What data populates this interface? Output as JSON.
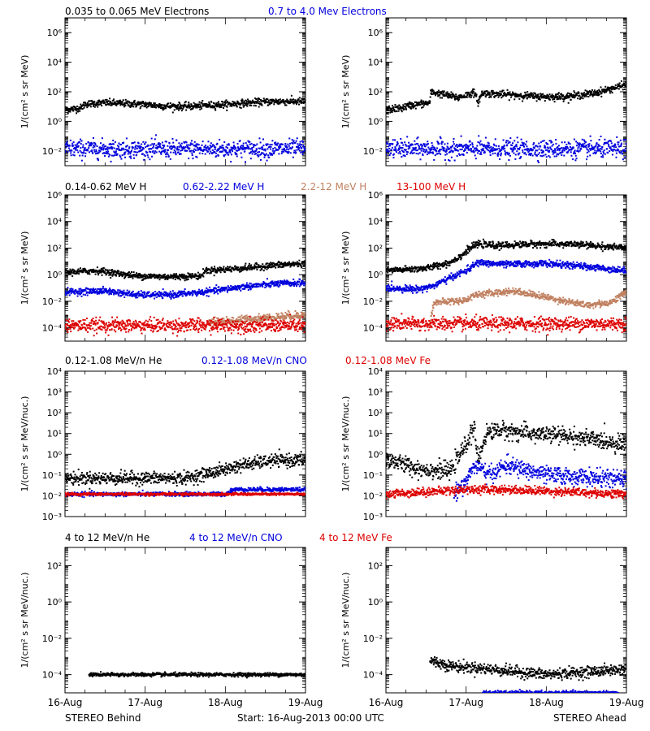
{
  "footer": {
    "left": "STEREO Behind",
    "center": "Start: 16-Aug-2013 00:00 UTC",
    "right": "STEREO Ahead"
  },
  "x_axis": {
    "ticks": [
      "16-Aug",
      "17-Aug",
      "18-Aug",
      "19-Aug"
    ],
    "range_days": [
      0,
      3
    ]
  },
  "rows": [
    {
      "id": "electrons",
      "ylabel": "1/(cm² s sr MeV)",
      "yscale": "log",
      "ylim_exp": [
        -3,
        7
      ],
      "tick_exps": [
        -2,
        0,
        2,
        4,
        6
      ],
      "legend": [
        {
          "label": "0.035 to 0.065 MeV Electrons",
          "color": "#000000"
        },
        {
          "label": "0.7 to 4.0 Mev Electrons",
          "color": "#0000dd"
        }
      ]
    },
    {
      "id": "protons",
      "ylabel": "1/(cm² s sr MeV)",
      "yscale": "log",
      "ylim_exp": [
        -5,
        6
      ],
      "tick_exps": [
        -4,
        -2,
        0,
        2,
        4,
        6
      ],
      "legend": [
        {
          "label": "0.14-0.62 MeV H",
          "color": "#000000"
        },
        {
          "label": "0.62-2.22 MeV H",
          "color": "#0000dd"
        },
        {
          "label": "2.2-12 MeV H",
          "color": "#c08060"
        },
        {
          "label": "13-100 MeV H",
          "color": "#dd0000"
        }
      ]
    },
    {
      "id": "heavy-low",
      "ylabel": "1/(cm² s sr MeV/nuc.)",
      "yscale": "log",
      "ylim_exp": [
        -3,
        4
      ],
      "tick_exps": [
        -3,
        -2,
        -1,
        0,
        1,
        2,
        3,
        4
      ],
      "legend": [
        {
          "label": "0.12-1.08 MeV/n He",
          "color": "#000000"
        },
        {
          "label": "0.12-1.08 MeV/n CNO",
          "color": "#0000dd"
        },
        {
          "label": "0.12-1.08 MeV Fe",
          "color": "#dd0000"
        }
      ]
    },
    {
      "id": "heavy-high",
      "ylabel": "1/(cm² s sr MeV/nuc.)",
      "yscale": "log",
      "ylim_exp": [
        -5,
        3
      ],
      "tick_exps": [
        -4,
        -2,
        0,
        2
      ],
      "legend": [
        {
          "label": "4 to 12 MeV/n He",
          "color": "#000000"
        },
        {
          "label": "4 to 12 MeV/n CNO",
          "color": "#0000dd"
        },
        {
          "label": "4 to 12 MeV Fe",
          "color": "#dd0000"
        }
      ]
    }
  ],
  "chart_data": [
    {
      "type": "scatter",
      "panel": "electrons-behind",
      "spacecraft": "STEREO Behind",
      "yscale": "log",
      "x_unit": "days since 16-Aug-2013 00:00 UTC",
      "series": [
        {
          "name": "0.035 to 0.065 MeV Electrons",
          "color": "#000000",
          "scatter": 0.12,
          "points": [
            [
              0,
              6
            ],
            [
              0.2,
              8
            ],
            [
              0.25,
              15
            ],
            [
              0.5,
              18
            ],
            [
              1.0,
              14
            ],
            [
              1.2,
              11
            ],
            [
              1.5,
              10
            ],
            [
              2.0,
              14
            ],
            [
              2.3,
              18
            ],
            [
              2.6,
              22
            ],
            [
              3.0,
              22
            ]
          ]
        },
        {
          "name": "0.7 to 4.0 Mev Electrons",
          "color": "#0000dd",
          "scatter": 0.3,
          "points": [
            [
              0,
              0.014
            ],
            [
              1.5,
              0.013
            ],
            [
              3.0,
              0.014
            ]
          ]
        }
      ]
    },
    {
      "type": "scatter",
      "panel": "electrons-ahead",
      "spacecraft": "STEREO Ahead",
      "yscale": "log",
      "x_unit": "days since 16-Aug-2013 00:00 UTC",
      "series": [
        {
          "name": "0.035 to 0.065 MeV Electrons",
          "color": "#000000",
          "scatter": 0.12,
          "points": [
            [
              0,
              6
            ],
            [
              0.2,
              8
            ],
            [
              0.3,
              12
            ],
            [
              0.55,
              18
            ],
            [
              0.56,
              100
            ],
            [
              0.9,
              40
            ],
            [
              1.1,
              90
            ],
            [
              1.15,
              20
            ],
            [
              1.2,
              80
            ],
            [
              1.6,
              60
            ],
            [
              2.0,
              45
            ],
            [
              2.3,
              50
            ],
            [
              2.6,
              80
            ],
            [
              3.0,
              300
            ]
          ]
        },
        {
          "name": "0.7 to 4.0 Mev Electrons",
          "color": "#0000dd",
          "scatter": 0.3,
          "points": [
            [
              0,
              0.014
            ],
            [
              1.5,
              0.013
            ],
            [
              3.0,
              0.014
            ]
          ]
        }
      ]
    },
    {
      "type": "scatter",
      "panel": "protons-behind",
      "spacecraft": "STEREO Behind",
      "yscale": "log",
      "x_unit": "days since 16-Aug-2013 00:00 UTC",
      "series": [
        {
          "name": "0.14-0.62 MeV H",
          "color": "#000000",
          "scatter": 0.12,
          "points": [
            [
              0,
              1.5
            ],
            [
              0.4,
              2
            ],
            [
              0.9,
              0.8
            ],
            [
              1.3,
              0.7
            ],
            [
              1.7,
              0.8
            ],
            [
              1.75,
              2
            ],
            [
              2.2,
              3
            ],
            [
              2.6,
              5
            ],
            [
              3.0,
              7
            ]
          ]
        },
        {
          "name": "0.62-2.22 MeV H",
          "color": "#0000dd",
          "scatter": 0.12,
          "points": [
            [
              0,
              0.05
            ],
            [
              0.5,
              0.06
            ],
            [
              0.9,
              0.03
            ],
            [
              1.3,
              0.03
            ],
            [
              1.75,
              0.05
            ],
            [
              2.2,
              0.12
            ],
            [
              2.6,
              0.2
            ],
            [
              3.0,
              0.25
            ]
          ]
        },
        {
          "name": "2.2-12 MeV H",
          "color": "#c08060",
          "scatter": 0.15,
          "points": [
            [
              1.8,
              0.00025
            ],
            [
              2.4,
              0.0005
            ],
            [
              3.0,
              0.001
            ]
          ]
        },
        {
          "name": "13-100 MeV H",
          "color": "#dd0000",
          "scatter": 0.25,
          "points": [
            [
              0,
              0.00015
            ],
            [
              1.5,
              0.00015
            ],
            [
              3.0,
              0.00015
            ]
          ]
        }
      ]
    },
    {
      "type": "scatter",
      "panel": "protons-ahead",
      "spacecraft": "STEREO Ahead",
      "yscale": "log",
      "x_unit": "days since 16-Aug-2013 00:00 UTC",
      "series": [
        {
          "name": "0.14-0.62 MeV H",
          "color": "#000000",
          "scatter": 0.12,
          "points": [
            [
              0,
              2
            ],
            [
              0.5,
              3
            ],
            [
              0.8,
              8
            ],
            [
              0.95,
              30
            ],
            [
              1.05,
              100
            ],
            [
              1.15,
              200
            ],
            [
              1.4,
              150
            ],
            [
              1.8,
              200
            ],
            [
              2.3,
              200
            ],
            [
              2.6,
              150
            ],
            [
              3.0,
              100
            ]
          ]
        },
        {
          "name": "0.62-2.22 MeV H",
          "color": "#0000dd",
          "scatter": 0.12,
          "points": [
            [
              0,
              0.1
            ],
            [
              0.4,
              0.08
            ],
            [
              0.6,
              0.15
            ],
            [
              0.85,
              0.8
            ],
            [
              1.0,
              2
            ],
            [
              1.15,
              8
            ],
            [
              1.5,
              6
            ],
            [
              2.0,
              7
            ],
            [
              2.5,
              4
            ],
            [
              3.0,
              2
            ]
          ]
        },
        {
          "name": "2.2-12 MeV H",
          "color": "#c08060",
          "scatter": 0.12,
          "points": [
            [
              0.55,
              0.0003
            ],
            [
              0.6,
              0.008
            ],
            [
              1.0,
              0.012
            ],
            [
              1.1,
              0.03
            ],
            [
              1.6,
              0.06
            ],
            [
              2.0,
              0.02
            ],
            [
              2.5,
              0.005
            ],
            [
              2.8,
              0.008
            ],
            [
              3.0,
              0.05
            ]
          ]
        },
        {
          "name": "13-100 MeV H",
          "color": "#dd0000",
          "scatter": 0.25,
          "points": [
            [
              0,
              0.0002
            ],
            [
              1.5,
              0.0002
            ],
            [
              3.0,
              0.0002
            ]
          ]
        }
      ]
    },
    {
      "type": "scatter",
      "panel": "heavy-low-behind",
      "spacecraft": "STEREO Behind",
      "yscale": "log",
      "x_unit": "days since 16-Aug-2013 00:00 UTC",
      "series": [
        {
          "name": "0.12-1.08 MeV/n He",
          "color": "#000000",
          "scatter": 0.15,
          "points": [
            [
              0,
              0.07
            ],
            [
              1.5,
              0.07
            ],
            [
              1.9,
              0.15
            ],
            [
              2.2,
              0.3
            ],
            [
              2.6,
              0.5
            ],
            [
              3.0,
              0.5
            ]
          ]
        },
        {
          "name": "0.12-1.08 MeV/n CNO",
          "color": "#0000dd",
          "scatter": 0.05,
          "points": [
            [
              0,
              0.012
            ],
            [
              2.0,
              0.012
            ],
            [
              2.1,
              0.02
            ],
            [
              3.0,
              0.02
            ]
          ]
        },
        {
          "name": "0.12-1.08 MeV Fe",
          "color": "#dd0000",
          "scatter": 0.03,
          "points": [
            [
              0,
              0.012
            ],
            [
              3.0,
              0.012
            ]
          ]
        }
      ]
    },
    {
      "type": "scatter",
      "panel": "heavy-low-ahead",
      "spacecraft": "STEREO Ahead",
      "yscale": "log",
      "x_unit": "days since 16-Aug-2013 00:00 UTC",
      "series": [
        {
          "name": "0.12-1.08 MeV/n He",
          "color": "#000000",
          "scatter": 0.2,
          "points": [
            [
              0,
              0.6
            ],
            [
              0.4,
              0.2
            ],
            [
              0.8,
              0.15
            ],
            [
              1.0,
              3
            ],
            [
              1.1,
              20
            ],
            [
              1.15,
              0.5
            ],
            [
              1.25,
              10
            ],
            [
              1.4,
              15
            ],
            [
              1.8,
              10
            ],
            [
              2.2,
              8
            ],
            [
              2.6,
              5
            ],
            [
              3.0,
              3
            ]
          ]
        },
        {
          "name": "0.12-1.08 MeV/n CNO",
          "color": "#0000dd",
          "scatter": 0.2,
          "points": [
            [
              0.85,
              0.012
            ],
            [
              1.0,
              0.05
            ],
            [
              1.1,
              0.3
            ],
            [
              1.3,
              0.1
            ],
            [
              1.5,
              0.3
            ],
            [
              2.0,
              0.1
            ],
            [
              3.0,
              0.06
            ]
          ]
        },
        {
          "name": "0.12-1.08 MeV Fe",
          "color": "#dd0000",
          "scatter": 0.1,
          "points": [
            [
              0,
              0.012
            ],
            [
              1.0,
              0.02
            ],
            [
              1.5,
              0.02
            ],
            [
              3.0,
              0.012
            ]
          ]
        }
      ]
    },
    {
      "type": "scatter",
      "panel": "heavy-high-behind",
      "spacecraft": "STEREO Behind",
      "yscale": "log",
      "x_unit": "days since 16-Aug-2013 00:00 UTC",
      "series": [
        {
          "name": "4 to 12 MeV/n He",
          "color": "#000000",
          "scatter": 0.05,
          "points": [
            [
              0.3,
              0.0001
            ],
            [
              3.0,
              0.0001
            ]
          ]
        }
      ]
    },
    {
      "type": "scatter",
      "panel": "heavy-high-ahead",
      "spacecraft": "STEREO Ahead",
      "yscale": "log",
      "x_unit": "days since 16-Aug-2013 00:00 UTC",
      "series": [
        {
          "name": "4 to 12 MeV/n He",
          "color": "#000000",
          "scatter": 0.15,
          "points": [
            [
              0.55,
              0.0006
            ],
            [
              0.8,
              0.0003
            ],
            [
              1.3,
              0.0002
            ],
            [
              2.0,
              0.0001
            ],
            [
              3.0,
              0.0002
            ]
          ]
        },
        {
          "name": "4 to 12 MeV/n CNO",
          "color": "#0000dd",
          "scatter": 0.05,
          "points": [
            [
              1.2,
              1e-05
            ],
            [
              2.9,
              1e-05
            ]
          ]
        }
      ]
    }
  ]
}
